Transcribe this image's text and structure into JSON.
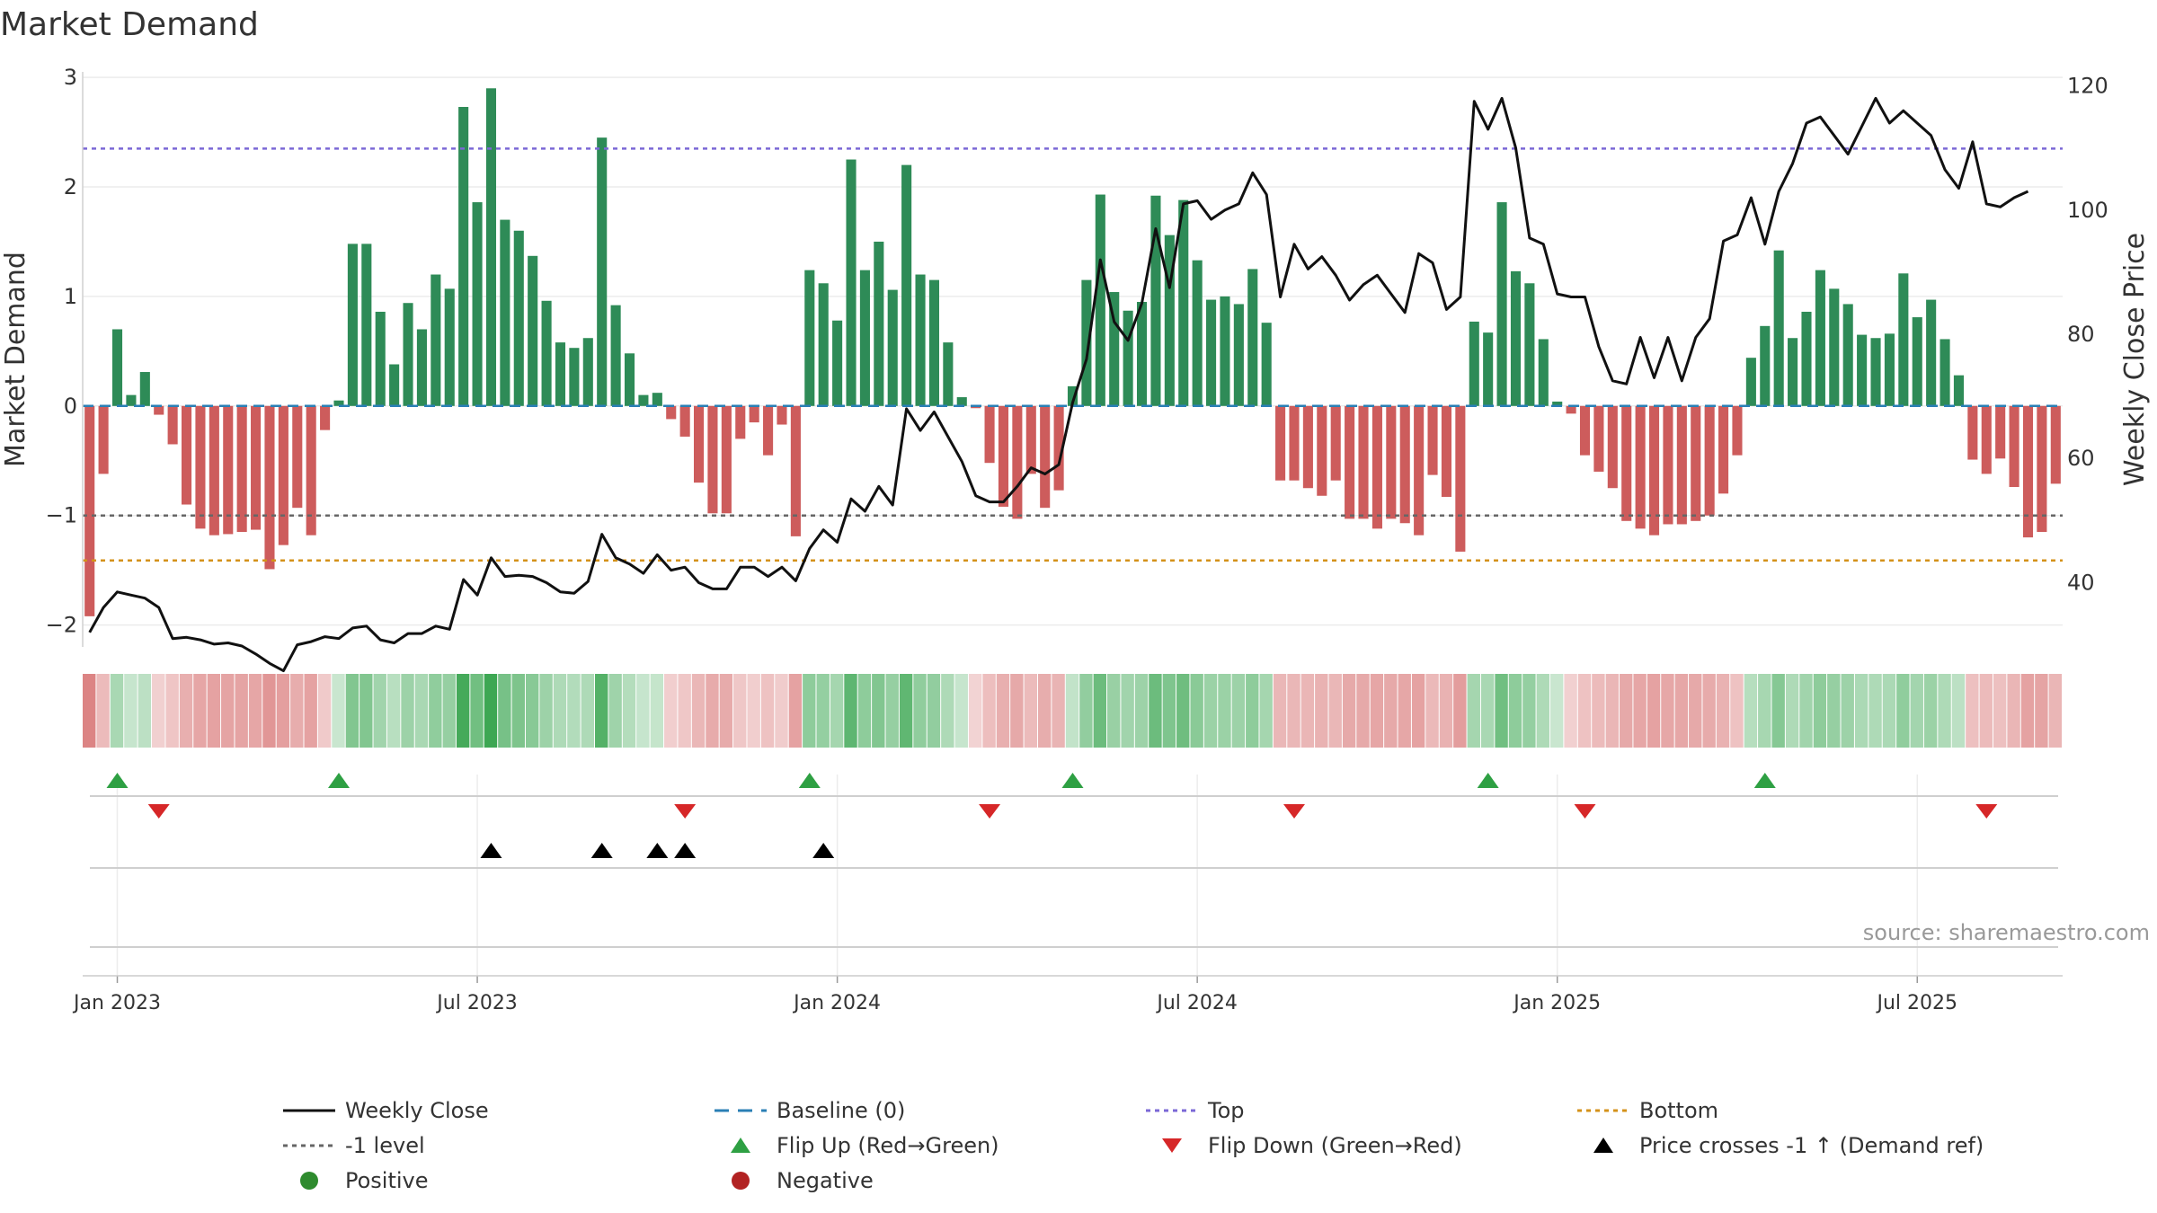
{
  "chart_data": {
    "type": "bar",
    "title": "Market Demand",
    "ylabel": "Market Demand",
    "y2label": "Weekly Close Price",
    "ylim": [
      -2.2,
      3.05
    ],
    "y2lim": [
      29.65,
      122.25
    ],
    "y_ticks": [
      -2,
      -1,
      0,
      1,
      2,
      3
    ],
    "y_tick_labels": [
      "−2",
      "−1",
      "0",
      "1",
      "2",
      "3"
    ],
    "y2_ticks": [
      40,
      60,
      80,
      100,
      120
    ],
    "y2_tick_labels": [
      "40",
      "60",
      "80",
      "100",
      "120"
    ],
    "x_tick_labels": [
      "Jan 2023",
      "Jul 2023",
      "Jan 2024",
      "Jul 2024",
      "Jan 2025",
      "Jul 2025"
    ],
    "x_tick_week_index": [
      2,
      28,
      54,
      80,
      106,
      132
    ],
    "series": [
      {
        "name": "Market Demand",
        "values": [
          -1.92,
          -0.62,
          0.7,
          0.1,
          0.31,
          -0.08,
          -0.35,
          -0.9,
          -1.12,
          -1.18,
          -1.17,
          -1.15,
          -1.13,
          -1.49,
          -1.27,
          -0.93,
          -1.18,
          -0.22,
          0.05,
          1.48,
          1.48,
          0.86,
          0.38,
          0.94,
          0.7,
          1.2,
          1.07,
          2.73,
          1.86,
          2.9,
          1.7,
          1.6,
          1.37,
          0.96,
          0.58,
          0.53,
          0.62,
          2.45,
          0.92,
          0.48,
          0.1,
          0.12,
          -0.12,
          -0.28,
          -0.7,
          -0.98,
          -0.98,
          -0.3,
          -0.15,
          -0.45,
          -0.17,
          -1.19,
          1.24,
          1.12,
          0.78,
          2.25,
          1.24,
          1.5,
          1.06,
          2.2,
          1.2,
          1.15,
          0.58,
          0.08,
          -0.02,
          -0.52,
          -0.92,
          -1.03,
          -0.62,
          -0.93,
          -0.77,
          0.18,
          1.15,
          1.93,
          1.04,
          0.87,
          0.95,
          1.92,
          1.56,
          1.88,
          1.33,
          0.97,
          1.0,
          0.93,
          1.25,
          0.76,
          -0.68,
          -0.68,
          -0.75,
          -0.82,
          -0.68,
          -1.03,
          -1.03,
          -1.12,
          -1.03,
          -1.07,
          -1.18,
          -0.63,
          -0.83,
          -1.33,
          0.77,
          0.67,
          1.86,
          1.23,
          1.12,
          0.61,
          0.04,
          -0.07,
          -0.45,
          -0.6,
          -0.75,
          -1.05,
          -1.12,
          -1.18,
          -1.08,
          -1.08,
          -1.05,
          -1.0,
          -0.8,
          -0.45,
          0.44,
          0.73,
          1.42,
          0.62,
          0.86,
          1.24,
          1.07,
          0.93,
          0.65,
          0.62,
          0.66,
          1.21,
          0.81,
          0.97,
          0.61,
          0.28,
          -0.49,
          -0.62,
          -0.48,
          -0.74,
          -1.2,
          -1.15,
          -0.71
        ]
      },
      {
        "name": "Weekly Close",
        "values": [
          32.0,
          36.0,
          38.5,
          38.0,
          37.5,
          36.0,
          31.0,
          31.2,
          30.8,
          30.1,
          30.3,
          29.8,
          28.5,
          27.0,
          25.8,
          30.0,
          30.5,
          31.3,
          31.0,
          32.7,
          33.0,
          30.8,
          30.3,
          31.8,
          31.8,
          33.0,
          32.5,
          40.5,
          38.0,
          44.0,
          41.0,
          41.2,
          41.0,
          40.0,
          38.5,
          38.3,
          40.2,
          47.8,
          44.0,
          43.0,
          41.5,
          44.5,
          42.0,
          42.5,
          40.0,
          39.0,
          39.0,
          42.5,
          42.5,
          41.0,
          42.5,
          40.3,
          45.5,
          48.5,
          46.5,
          53.5,
          51.5,
          55.5,
          52.5,
          68.0,
          64.5,
          67.5,
          63.5,
          59.5,
          54.0,
          53.0,
          53.0,
          55.5,
          58.5,
          57.5,
          59.0,
          69.0,
          76.0,
          92.0,
          82.0,
          79.0,
          85.0,
          97.0,
          87.5,
          101.0,
          101.5,
          98.5,
          100.0,
          101.0,
          106.0,
          102.5,
          86.0,
          94.5,
          90.5,
          92.5,
          89.5,
          85.5,
          88.0,
          89.5,
          86.5,
          83.5,
          93.0,
          91.5,
          84.0,
          86.0,
          117.5,
          113.0,
          118.0,
          110.0,
          95.5,
          94.5,
          86.5,
          86.0,
          86.0,
          78.0,
          72.5,
          72.0,
          79.5,
          73.0,
          79.5,
          72.5,
          79.5,
          82.5,
          95.0,
          96.0,
          102.0,
          94.5,
          103.0,
          107.5,
          114.0,
          115.0,
          112.0,
          109.0,
          113.5,
          118.0,
          114.0,
          116.0,
          114.0,
          112.0,
          106.5,
          103.5,
          111.0,
          101.0,
          100.5,
          102.0,
          103.0
        ]
      }
    ],
    "reference_lines": [
      {
        "name": "Top",
        "value": 2.35,
        "color": "#7B68D6",
        "style": "dotted"
      },
      {
        "name": "-1 level",
        "value": -1.0,
        "color": "#666666",
        "style": "dotted"
      },
      {
        "name": "Bottom",
        "value": -1.41,
        "color": "#D4921A",
        "style": "dotted"
      },
      {
        "name": "Baseline (0)",
        "value": 0.0,
        "color": "#2A7FB5",
        "style": "dashed"
      }
    ],
    "flip_up_weeks": [
      2,
      18,
      52,
      71,
      101,
      121
    ],
    "flip_down_weeks": [
      5,
      43,
      65,
      87,
      108,
      137
    ],
    "price_cross_weeks": [
      29,
      37,
      41,
      43,
      53
    ],
    "legend": [
      {
        "label": "Weekly Close",
        "marker": "line",
        "color": "#111111"
      },
      {
        "label": "Baseline (0)",
        "marker": "dash",
        "color": "#2A7FB5"
      },
      {
        "label": "Top",
        "marker": "dotted",
        "color": "#7B68D6"
      },
      {
        "label": "Bottom",
        "marker": "dotted",
        "color": "#D4921A"
      },
      {
        "label": "-1 level",
        "marker": "dotted",
        "color": "#666666"
      },
      {
        "label": "Flip Up (Red→Green)",
        "marker": "triangle-up",
        "color": "#2EA043"
      },
      {
        "label": "Flip Down (Green→Red)",
        "marker": "triangle-down",
        "color": "#D62728"
      },
      {
        "label": "Price crosses -1 ↑ (Demand ref)",
        "marker": "triangle-up",
        "color": "#000000"
      },
      {
        "label": "Positive",
        "marker": "circle",
        "color": "#2E8B2E"
      },
      {
        "label": "Negative",
        "marker": "circle",
        "color": "#B22222"
      }
    ],
    "source": "source: sharemaestro.com"
  },
  "colors": {
    "positive_bar": "#2E8B57",
    "negative_bar": "#CD5C5C",
    "price_line": "#111111",
    "flip_up": "#2EA043",
    "flip_down": "#D62728",
    "cross_marker": "#000000"
  }
}
